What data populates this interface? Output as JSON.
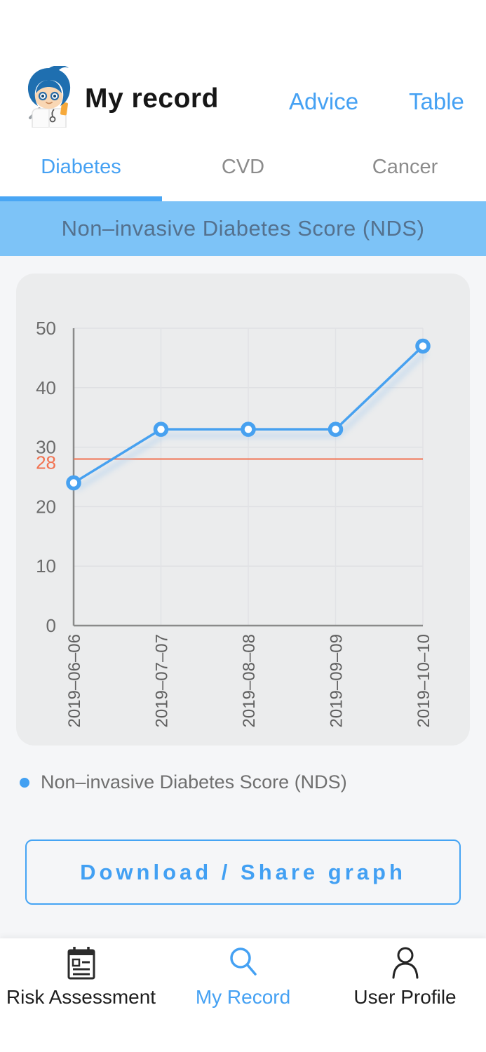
{
  "header": {
    "title": "My record",
    "links": [
      {
        "label": "Advice"
      },
      {
        "label": "Table"
      }
    ],
    "avatar_icon": "doctor-mascot-icon"
  },
  "tabs": {
    "items": [
      {
        "label": "Diabetes",
        "active": true
      },
      {
        "label": "CVD",
        "active": false
      },
      {
        "label": "Cancer",
        "active": false
      }
    ]
  },
  "banner": {
    "title": "Non–invasive Diabetes Score (NDS)"
  },
  "chart_data": {
    "type": "line",
    "title": "Non–invasive Diabetes Score (NDS)",
    "x": [
      "2019–06–06",
      "2019–07–07",
      "2019–08–08",
      "2019–09–09",
      "2019–10–10"
    ],
    "series": [
      {
        "name": "Non–invasive Diabetes Score (NDS)",
        "values": [
          24,
          33,
          33,
          33,
          47
        ],
        "color": "#47a1f0",
        "marker": "open-circle"
      }
    ],
    "reference_line": {
      "value": 28,
      "label": "28",
      "color": "#f2714f"
    },
    "ylim": [
      0,
      50
    ],
    "yticks": [
      0,
      10,
      20,
      30,
      40,
      50
    ],
    "grid": true,
    "x_label_rotation": -90,
    "legend_position": "bottom"
  },
  "legend": {
    "label": "Non–invasive Diabetes Score (NDS)",
    "marker_icon": "open-circle-icon"
  },
  "actions": {
    "download_share_label": "Download / Share graph"
  },
  "bottom_nav": {
    "items": [
      {
        "label": "Risk Assessment",
        "icon": "clipboard-icon",
        "active": false
      },
      {
        "label": "My Record",
        "icon": "search-icon",
        "active": true
      },
      {
        "label": "User Profile",
        "icon": "user-icon",
        "active": false
      }
    ]
  },
  "colors": {
    "accent": "#45a1f3",
    "tab_indicator": "#49a6f4",
    "banner_bg": "#7dc3f7",
    "banner_text": "#54718e",
    "line": "#47a1f0",
    "reference": "#f2714f",
    "page_bg": "#f5f6f8",
    "panel_bg": "#ebeced"
  }
}
